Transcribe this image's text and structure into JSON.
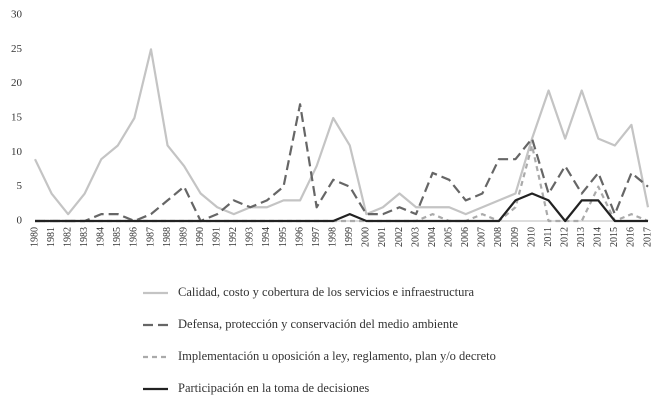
{
  "chart_data": {
    "type": "line",
    "categories": [
      "1980",
      "1981",
      "1982",
      "1983",
      "1984",
      "1985",
      "1986",
      "1987",
      "1988",
      "1989",
      "1990",
      "1991",
      "1992",
      "1993",
      "1994",
      "1995",
      "1996",
      "1997",
      "1998",
      "1999",
      "2000",
      "2001",
      "2002",
      "2003",
      "2004",
      "2005",
      "2006",
      "2007",
      "2008",
      "2009",
      "2010",
      "2011",
      "2012",
      "2013",
      "2014",
      "2015",
      "2016",
      "2017"
    ],
    "series": [
      {
        "name": "Calidad, costo y cobertura de los servicios e infraestructura",
        "color": "#c4c4c4",
        "dash": "none",
        "values": [
          9,
          4,
          1,
          4,
          9,
          11,
          15,
          25,
          11,
          8,
          4,
          2,
          1,
          2,
          2,
          3,
          3,
          8,
          15,
          11,
          1,
          2,
          4,
          2,
          2,
          2,
          1,
          2,
          3,
          4,
          12,
          19,
          12,
          19,
          12,
          11,
          14,
          2
        ]
      },
      {
        "name": "Defensa, protección y conservación del medio ambiente",
        "color": "#666666",
        "dash": "10,5",
        "values": [
          0,
          0,
          0,
          0,
          1,
          1,
          0,
          1,
          3,
          5,
          0,
          1,
          3,
          2,
          3,
          5,
          17,
          2,
          6,
          5,
          1,
          1,
          2,
          1,
          7,
          6,
          3,
          4,
          9,
          9,
          12,
          4,
          8,
          4,
          7,
          1,
          7,
          5
        ]
      },
      {
        "name": "Implementación u oposición a ley, reglamento, plan y/o decreto",
        "color": "#aaaaaa",
        "dash": "5,4",
        "values": [
          0,
          0,
          0,
          0,
          0,
          0,
          0,
          0,
          0,
          0,
          0,
          0,
          0,
          0,
          0,
          0,
          0,
          0,
          0,
          0,
          0,
          0,
          0,
          0,
          1,
          0,
          0,
          1,
          0,
          2,
          11,
          0,
          0,
          0,
          5,
          0,
          1,
          0
        ]
      },
      {
        "name": "Participación en la toma de decisiones",
        "color": "#222222",
        "dash": "none",
        "values": [
          0,
          0,
          0,
          0,
          0,
          0,
          0,
          0,
          0,
          0,
          0,
          0,
          0,
          0,
          0,
          0,
          0,
          0,
          0,
          1,
          0,
          0,
          0,
          0,
          0,
          0,
          0,
          0,
          0,
          3,
          4,
          3,
          0,
          3,
          3,
          0,
          0,
          0
        ]
      }
    ],
    "ylim": [
      0,
      30
    ],
    "yticks": [
      0,
      5,
      10,
      15,
      20,
      25,
      30
    ],
    "grid": false,
    "legend": "bottom"
  }
}
